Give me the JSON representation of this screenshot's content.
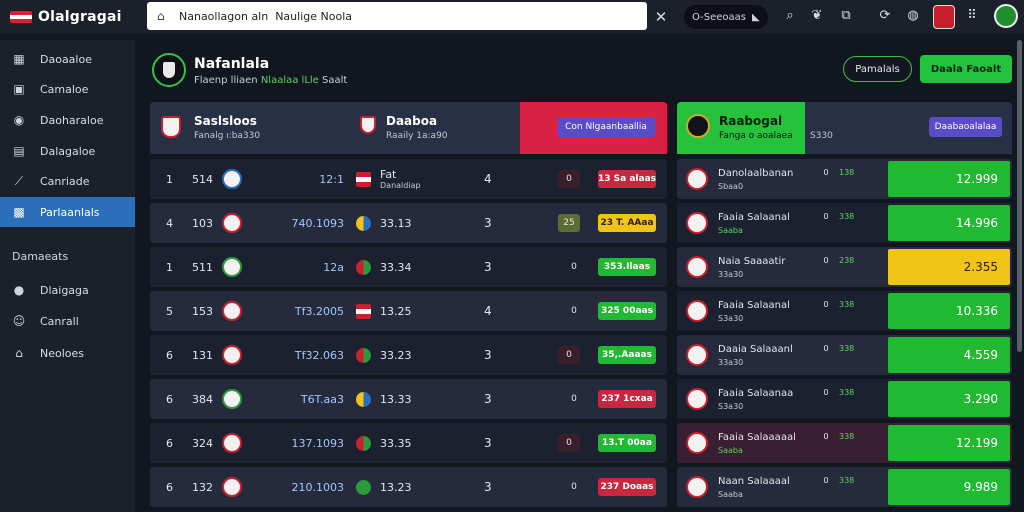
{
  "app": {
    "title": "Olalgragai"
  },
  "search": {
    "value": "Nanaollagon aln  Naulige Noola"
  },
  "toolbar": {
    "selector_label": "O-Seeoaas"
  },
  "sidebar": {
    "items": [
      {
        "label": "Daoaaloe",
        "icon": "grid-icon"
      },
      {
        "label": "Camaloe",
        "icon": "box-icon"
      },
      {
        "label": "Daoharaloe",
        "icon": "pin-icon"
      },
      {
        "label": "Dalagaloe",
        "icon": "calendar-icon"
      },
      {
        "label": "Canriade",
        "icon": "chart-icon"
      },
      {
        "label": "Parlaanlals",
        "icon": "image-icon",
        "active": true
      }
    ],
    "section_label": "Damaeats",
    "section_items": [
      {
        "label": "Dlaigaga",
        "icon": "user-icon"
      },
      {
        "label": "Canrall",
        "icon": "smile-icon"
      },
      {
        "label": "Neoloes",
        "icon": "home-icon"
      }
    ]
  },
  "header": {
    "title": "Nafanlala",
    "subtitle_a": "Flaenp lliaen",
    "subtitle_b": "Nlaalaa lLle",
    "subtitle_c": "Saalt",
    "outline_button": "Pamalals",
    "green_button": "Daala Faoalt"
  },
  "left_panel": {
    "team1_name": "Saslsloos",
    "team1_sub": "Fanalg  ı:ba330",
    "team2_name": "Daaboa",
    "team2_sub": "Raaily  1a:a90",
    "action_button": "Con Nlgaanbaallia",
    "rows": [
      {
        "rank": "1",
        "n1": "514",
        "v2": "12:1",
        "v3": "Fat",
        "v3sub": "Danaldiap",
        "v4": "4",
        "v5": "0",
        "chip": "13 Sa alaas",
        "chip_color": "#c8273e",
        "ball": "blue",
        "dot": "flag"
      },
      {
        "rank": "4",
        "n1": "103",
        "v2": "740.1093",
        "v3": "33.13",
        "v4": "3",
        "v5": "25",
        "chip": "23 T. AAaa",
        "chip_color": "#f0c419",
        "ball": "red",
        "dot": "mix"
      },
      {
        "rank": "1",
        "n1": "511",
        "v2": "12a",
        "v3": "33.34",
        "v4": "3",
        "v5": "0",
        "chip": "353.Ilaas",
        "chip_color": "#21b832",
        "ball": "grn",
        "dot": "redgreen"
      },
      {
        "rank": "5",
        "n1": "153",
        "v2": "Tf3.2005",
        "v3": "13.25",
        "v4": "4",
        "v5": "0",
        "chip": "325 00aas",
        "chip_color": "#21b832",
        "ball": "red",
        "dot": "flag"
      },
      {
        "rank": "6",
        "n1": "131",
        "v2": "Tf32.063",
        "v3": "33.23",
        "v4": "3",
        "v5": "0",
        "chip": "35,.Aaaas",
        "chip_color": "#21b832",
        "ball": "red",
        "dot": "redgreen"
      },
      {
        "rank": "6",
        "n1": "384",
        "v2": "T6T.aa3",
        "v3": "13.33",
        "v4": "3",
        "v5": "0",
        "chip": "237 1cxaa",
        "chip_color": "#c8273e",
        "ball": "grn",
        "dot": "mix"
      },
      {
        "rank": "6",
        "n1": "324",
        "v2": "137.1093",
        "v3": "33.35",
        "v4": "3",
        "v5": "0",
        "chip": "13.T 00aa",
        "chip_color": "#21b832",
        "ball": "red",
        "dot": "redgreen"
      },
      {
        "rank": "6",
        "n1": "132",
        "v2": "210.1003",
        "v3": "13.23",
        "v4": "3",
        "v5": "0",
        "chip": "237 Doaas",
        "chip_color": "#c8273e",
        "ball": "red",
        "dot": "green"
      }
    ]
  },
  "right_panel": {
    "title": "Raabogal",
    "sub": "Fanga  o aoalaea",
    "sub2": "S330",
    "action_button": "Daabaoalalaa",
    "rows": [
      {
        "name": "Danolaalbanan",
        "sub": "Sbaa0",
        "mini1": "0",
        "mini2": "138",
        "value": "12.999",
        "color": "green",
        "style": "alt",
        "sub_green": false
      },
      {
        "name": "Faaia Salaanal",
        "sub": "Saaba",
        "mini1": "0",
        "mini2": "338",
        "value": "14.996",
        "color": "green",
        "style": "",
        "sub_green": true
      },
      {
        "name": "Naia Saaaatir",
        "sub": "33a30",
        "mini1": "0",
        "mini2": "238",
        "value": "2.355",
        "color": "yellow",
        "style": "alt",
        "sub_green": false
      },
      {
        "name": "Faaia Salaanal",
        "sub": "S3a30",
        "mini1": "0",
        "mini2": "338",
        "value": "10.336",
        "color": "green",
        "style": "",
        "sub_green": false
      },
      {
        "name": "Daaia Salaaanl",
        "sub": "33a30",
        "mini1": "0",
        "mini2": "338",
        "value": "4.559",
        "color": "green",
        "style": "alt",
        "sub_green": false
      },
      {
        "name": "Faaia Salaanaa",
        "sub": "S3a30",
        "mini1": "0",
        "mini2": "338",
        "value": "3.290",
        "color": "green",
        "style": "",
        "sub_green": false
      },
      {
        "name": "Faaia Salaaaaal",
        "sub": "Saaba",
        "mini1": "0",
        "mini2": "338",
        "value": "12.199",
        "color": "green",
        "style": "maroon",
        "sub_green": true
      },
      {
        "name": "Naan Salaaaal",
        "sub": "Saaba",
        "mini1": "0",
        "mini2": "338",
        "value": "9.989",
        "color": "green",
        "style": "alt",
        "sub_green": false
      }
    ]
  }
}
